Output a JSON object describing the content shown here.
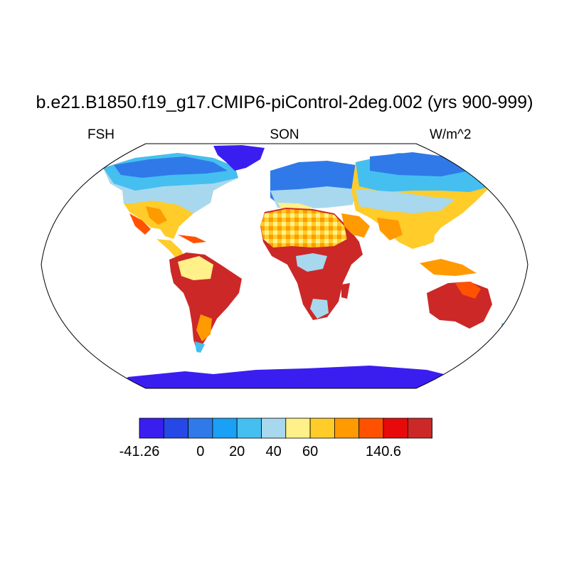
{
  "title": "b.e21.B1850.f19_g17.CMIP6-piControl-2deg.002 (yrs 900-999)",
  "subtitle_left": "FSH",
  "subtitle_center": "SON",
  "subtitle_right": "W/m^2",
  "colorbar": {
    "colors": [
      "#3a1ef0",
      "#2548e6",
      "#2f7ae8",
      "#1aa0f5",
      "#45bff0",
      "#a8d8ee",
      "#fff08a",
      "#ffcc29",
      "#ff9a00",
      "#ff5200",
      "#e80a0a",
      "#cc2828"
    ],
    "labels": [
      "-41.26",
      "0",
      "20",
      "40",
      "60",
      "140.6"
    ],
    "label_positions": [
      0,
      2.5,
      4,
      5.5,
      7,
      10
    ]
  },
  "map": {
    "projection": "Robinson",
    "variable": "sensible heat flux",
    "season": "SON"
  }
}
